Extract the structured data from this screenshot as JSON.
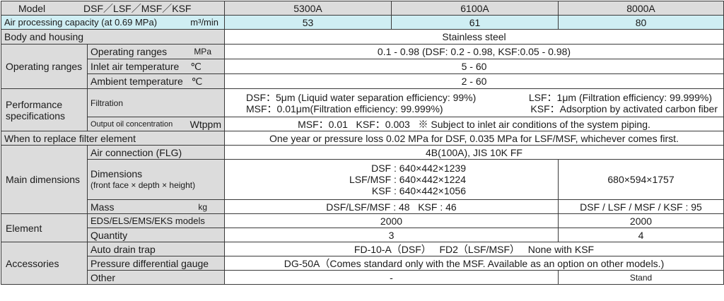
{
  "header": {
    "model_label": "Model",
    "series_label": "DSF／LSF／MSF／KSF",
    "models": [
      "5300A",
      "6100A",
      "8000A"
    ]
  },
  "capacity": {
    "label": "Air processing capacity (at 0.69 MPa)",
    "unit": "m³/min",
    "values": [
      "53",
      "61",
      "80"
    ]
  },
  "body_housing": {
    "label": "Body and housing",
    "value": "Stainless steel"
  },
  "operating": {
    "group_label": "Operating ranges",
    "ranges_label": "Operating ranges",
    "ranges_unit": "MPa",
    "ranges_value": "0.1 - 0.98 (DSF: 0.2 - 0.98, KSF:0.05 - 0.98)",
    "inlet_label": "Inlet air temperature",
    "inlet_unit": "℃",
    "inlet_value": "5 - 60",
    "ambient_label": "Ambient temperature",
    "ambient_unit": "℃",
    "ambient_value": "2 - 60"
  },
  "performance": {
    "group_label_1": "Performance",
    "group_label_2": "specifications",
    "filtration_label": "Filtration",
    "filt_dsf": "DSF：5μm (Liquid water separation efficiency: 99%)",
    "filt_lsf": "LSF：1μm (Filtration efficiency: 99.999%)",
    "filt_msf": "MSF：0.01μm(Filtration efficiency: 99.999%)",
    "filt_ksf": "KSF：Adsorption by activated carbon fiber",
    "oil_label": "Output oil concentration",
    "oil_unit": "Wtppm",
    "oil_value": "MSF：0.01   KSF：0.003   ※ Subject to inlet air conditions of the system piping."
  },
  "replace": {
    "label": "When to replace filter element",
    "value": "One year or pressure loss 0.02 MPa for DSF, 0.035 MPa for LSF/MSF, whichever comes first."
  },
  "main_dimensions": {
    "group_label": "Main dimensions",
    "connection_label": "Air connection (FLG)",
    "connection_value": "4B(100A), JIS 10K FF",
    "dims_label_1": "Dimensions",
    "dims_label_2": "(front face × depth × height)",
    "dims_dsf": "DSF : 640×442×1239",
    "dims_lsf": "LSF/MSF : 640×442×1224",
    "dims_ksf": "KSF : 640×442×1056",
    "dims_8000": "680×594×1757",
    "mass_label": "Mass",
    "mass_unit": "kg",
    "mass_small": "DSF/LSF/MSF : 48   KSF : 46",
    "mass_8000": "DSF / LSF / MSF / KSF : 95"
  },
  "element": {
    "group_label": "Element",
    "models_label": "EDS/ELS/EMS/EKS models",
    "models_small": "2000",
    "models_8000": "2000",
    "qty_label": "Quantity",
    "qty_small": "3",
    "qty_8000": "4"
  },
  "accessories": {
    "group_label": "Accessories",
    "drain_label": "Auto drain trap",
    "drain_value": "FD-10-A（DSF）   FD2（LSF/MSF）   None with KSF",
    "gauge_label": "Pressure differential gauge",
    "gauge_value": "DG-50A（Comes standard only with the MSF. Available as an option on other models.)",
    "other_label": "Other",
    "other_small": "-",
    "other_8000": "Stand"
  }
}
